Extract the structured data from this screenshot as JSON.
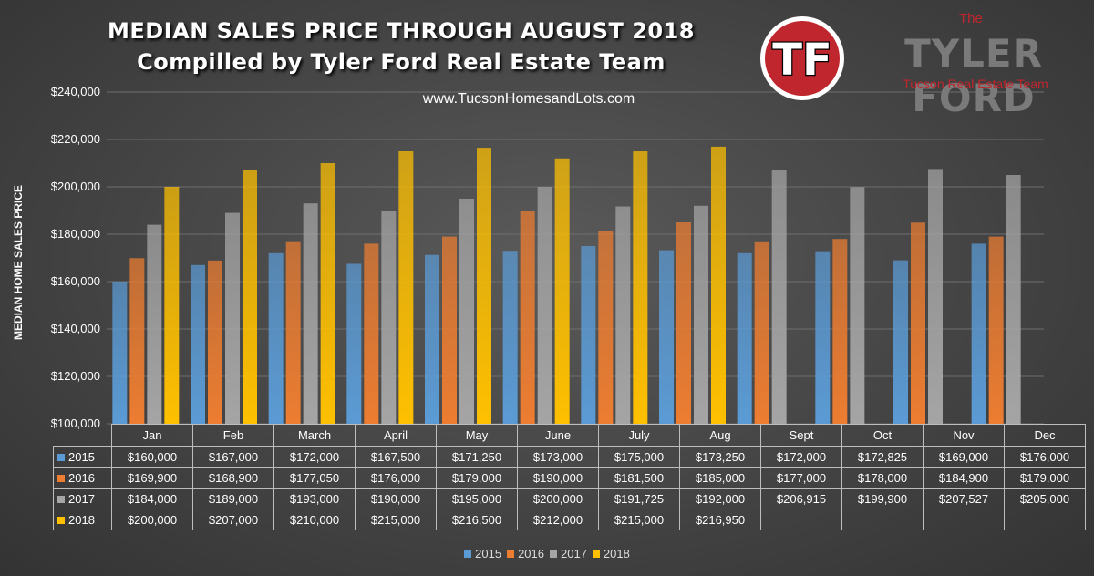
{
  "header": {
    "title_line1": "MEDIAN SALES PRICE THROUGH AUGUST 2018",
    "title_line2": "Compilled by Tyler Ford Real Estate Team",
    "website": "www.TucsonHomesandLots.com"
  },
  "brand": {
    "logo_text": "TF",
    "the": "The",
    "name": "TYLER FORD",
    "subtitle": "Tucson Real Estate Team",
    "color": "#c0262d"
  },
  "chart_data": {
    "type": "bar",
    "categories": [
      "Jan",
      "Feb",
      "March",
      "April",
      "May",
      "June",
      "July",
      "Aug",
      "Sept",
      "Oct",
      "Nov",
      "Dec"
    ],
    "series": [
      {
        "name": "2015",
        "color": "#5b9bd5",
        "values": [
          160000,
          167000,
          172000,
          167500,
          171250,
          173000,
          175000,
          173250,
          172000,
          172825,
          169000,
          176000
        ]
      },
      {
        "name": "2016",
        "color": "#ed7d31",
        "values": [
          169900,
          168900,
          177050,
          176000,
          179000,
          190000,
          181500,
          185000,
          177000,
          178000,
          184900,
          179000
        ]
      },
      {
        "name": "2017",
        "color": "#a5a5a5",
        "values": [
          184000,
          189000,
          193000,
          190000,
          195000,
          200000,
          191725,
          192000,
          206915,
          199900,
          207527,
          205000
        ]
      },
      {
        "name": "2018",
        "color": "#ffc000",
        "values": [
          200000,
          207000,
          210000,
          215000,
          216500,
          212000,
          215000,
          216950,
          null,
          null,
          null,
          null
        ]
      }
    ],
    "ylabel": "MEDIAN HOME SALES PRICE",
    "ylim": [
      100000,
      240000
    ],
    "yticks": [
      100000,
      120000,
      140000,
      160000,
      180000,
      200000,
      220000,
      240000
    ],
    "ytick_labels": [
      "$100,000",
      "$120,000",
      "$140,000",
      "$160,000",
      "$180,000",
      "$200,000",
      "$220,000",
      "$240,000"
    ],
    "grid": true,
    "legend": "bottom",
    "data_table": [
      {
        "series": "2015",
        "cells": [
          "$160,000",
          "$167,000",
          "$172,000",
          "$167,500",
          "$171,250",
          "$173,000",
          "$175,000",
          "$173,250",
          "$172,000",
          "$172,825",
          "$169,000",
          "$176,000"
        ]
      },
      {
        "series": "2016",
        "cells": [
          "$169,900",
          "$168,900",
          "$177,050",
          "$176,000",
          "$179,000",
          "$190,000",
          "$181,500",
          "$185,000",
          "$177,000",
          "$178,000",
          "$184,900",
          "$179,000"
        ]
      },
      {
        "series": "2017",
        "cells": [
          "$184,000",
          "$189,000",
          "$193,000",
          "$190,000",
          "$195,000",
          "$200,000",
          "$191,725",
          "$192,000",
          "$206,915",
          "$199,900",
          "$207,527",
          "$205,000"
        ]
      },
      {
        "series": "2018",
        "cells": [
          "$200,000",
          "$207,000",
          "$210,000",
          "$215,000",
          "$216,500",
          "$212,000",
          "$215,000",
          "$216,950",
          "",
          "",
          "",
          ""
        ]
      }
    ]
  }
}
